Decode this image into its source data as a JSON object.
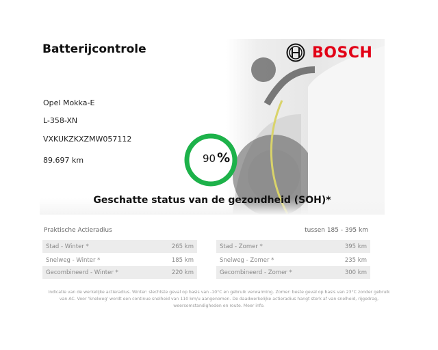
{
  "header": {
    "title": "Batterijcontrole",
    "brand": "BOSCH",
    "logo_icon": "bosch-armature-logo",
    "brand_color": "#e20015"
  },
  "vehicle": {
    "model": "Opel Mokka-E",
    "plate": "L-358-XN",
    "vin": "VXKUKZKXZMW057112",
    "mileage": "89.697 km"
  },
  "soh": {
    "value": "90",
    "unit": "%",
    "percent": 90,
    "label": "Geschatte status van de gezondheid (SOH)*",
    "ring_color": "#1db24a"
  },
  "range": {
    "title": "Praktische Actieradius",
    "summary": "tussen 185 - 395 km",
    "winter": [
      {
        "label": "Stad - Winter *",
        "value": "265 km"
      },
      {
        "label": "Snelweg - Winter *",
        "value": "185 km"
      },
      {
        "label": "Gecombineerd - Winter *",
        "value": "220 km"
      }
    ],
    "summer": [
      {
        "label": "Stad - Zomer *",
        "value": "395 km"
      },
      {
        "label": "Snelweg - Zomer *",
        "value": "235 km"
      },
      {
        "label": "Gecombineerd - Zomer *",
        "value": "300 km"
      }
    ]
  },
  "footnote": {
    "text": "Indicatie van de werkelijke actieradius. Winter: slechtste geval op basis van -10°C en gebruik verwarming. Zomer: beste geval op basis van 23°C zonder gebruik van AC. Voor 'Snelweg' wordt een continue snelheid van 110 km/u aangenomen. De daadwerkelijke actieradius hangt sterk af van snelheid, rijgedrag, weersomstandigheden en route.",
    "link": "Meer info."
  }
}
